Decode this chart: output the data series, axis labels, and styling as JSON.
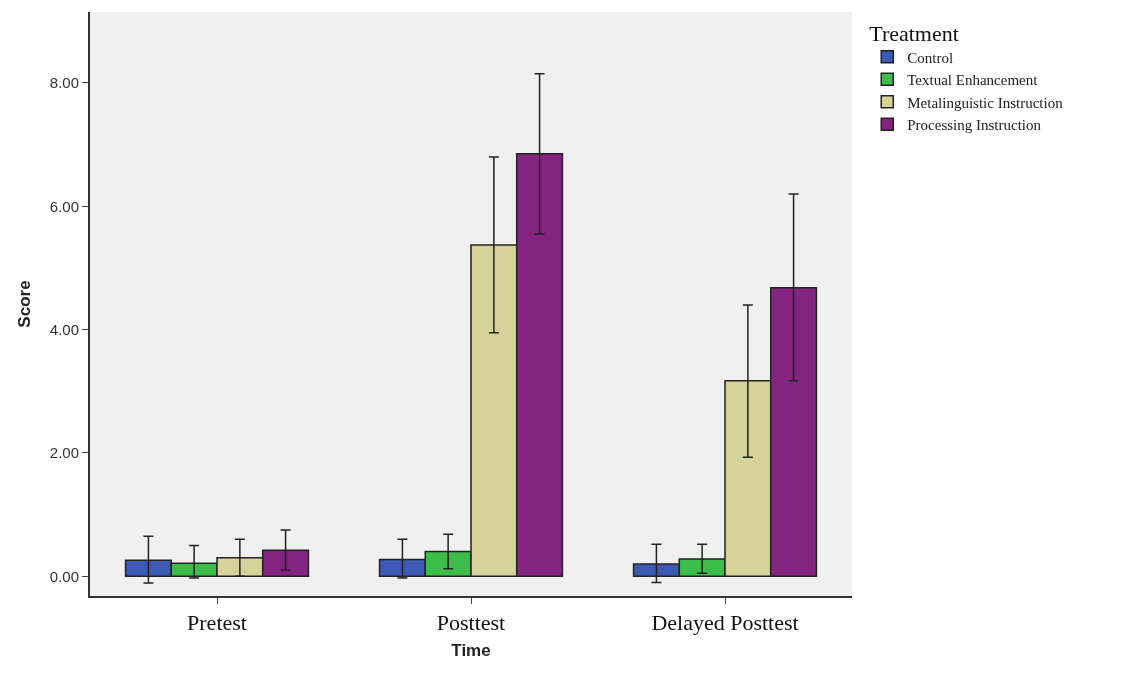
{
  "chart_data": {
    "type": "bar",
    "xlabel": "Time",
    "ylabel": "Score",
    "legend_title": "Treatment",
    "legend": "top right",
    "grid": false,
    "categories": [
      "Pretest",
      "Posttest",
      "Delayed Posttest"
    ],
    "ylim": [
      -0.32,
      9.15
    ],
    "yticks": [
      {
        "value": 0,
        "label": "0.00"
      },
      {
        "value": 2,
        "label": "2.00"
      },
      {
        "value": 4,
        "label": "4.00"
      },
      {
        "value": 6,
        "label": "6.00"
      },
      {
        "value": 8,
        "label": "8.00"
      }
    ],
    "series": [
      {
        "name": "Control",
        "color": "#3c5ab4",
        "values": [
          0.26,
          0.27,
          0.2
        ],
        "errors": [
          [
            -0.11,
            0.65
          ],
          [
            -0.03,
            0.6
          ],
          [
            -0.1,
            0.52
          ]
        ]
      },
      {
        "name": "Textual Enhancement",
        "color": "#3cbc48",
        "values": [
          0.21,
          0.4,
          0.28
        ],
        "errors": [
          [
            -0.03,
            0.5
          ],
          [
            0.12,
            0.68
          ],
          [
            0.05,
            0.52
          ]
        ]
      },
      {
        "name": "Metalinguistic Instruction",
        "color": "#d6d29a",
        "values": [
          0.3,
          5.37,
          3.17
        ],
        "errors": [
          [
            0.0,
            0.6
          ],
          [
            3.95,
            6.8
          ],
          [
            1.93,
            4.4
          ]
        ]
      },
      {
        "name": "Processing Instruction",
        "color": "#832480",
        "values": [
          0.42,
          6.85,
          4.68
        ],
        "errors": [
          [
            0.1,
            0.75
          ],
          [
            5.55,
            8.15
          ],
          [
            3.17,
            6.2
          ]
        ]
      }
    ]
  }
}
